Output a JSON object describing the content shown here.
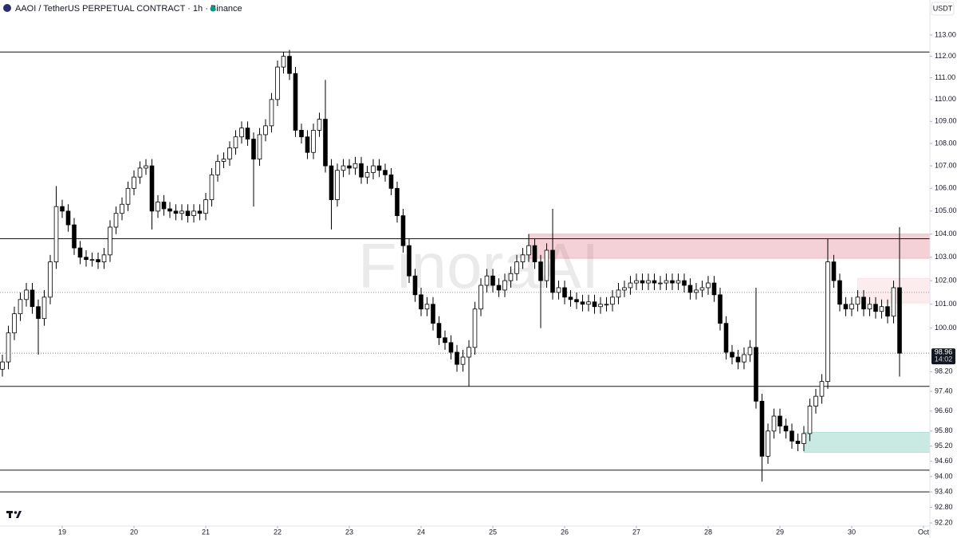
{
  "chart_data": {
    "type": "candlestick",
    "title": "AAOI / TetherUS PERPETUAL CONTRACT · 1h · Binance",
    "currency": "USDT",
    "watermark": "FinoraAI",
    "log_scale": true,
    "grid": false,
    "up_color": "#ffffff",
    "down_color": "#000000",
    "xlim": [
      -0.4,
      155.07
    ],
    "xticks": [
      {
        "value": 10,
        "label": "19"
      },
      {
        "value": 22,
        "label": "20"
      },
      {
        "value": 34,
        "label": "21"
      },
      {
        "value": 46,
        "label": "22"
      },
      {
        "value": 58,
        "label": "23"
      },
      {
        "value": 70,
        "label": "24"
      },
      {
        "value": 82,
        "label": "25"
      },
      {
        "value": 94,
        "label": "26"
      },
      {
        "value": 106,
        "label": "27"
      },
      {
        "value": 118,
        "label": "28"
      },
      {
        "value": 130,
        "label": "29"
      },
      {
        "value": 142,
        "label": "30"
      },
      {
        "value": 154,
        "label": "Oct"
      }
    ],
    "ylim": [
      92.08,
      114.66
    ],
    "yticks": [
      {
        "value": 113,
        "label": "113.00"
      },
      {
        "value": 112,
        "label": "112.00"
      },
      {
        "value": 111,
        "label": "111.00"
      },
      {
        "value": 110,
        "label": "110.00"
      },
      {
        "value": 109,
        "label": "109.00"
      },
      {
        "value": 108,
        "label": "108.00"
      },
      {
        "value": 107,
        "label": "107.00"
      },
      {
        "value": 106,
        "label": "106.00"
      },
      {
        "value": 105,
        "label": "105.00"
      },
      {
        "value": 104,
        "label": "104.00"
      },
      {
        "value": 103,
        "label": "103.00"
      },
      {
        "value": 102,
        "label": "102.00"
      },
      {
        "value": 101,
        "label": "101.00"
      },
      {
        "value": 100,
        "label": "100.00"
      },
      {
        "value": 98.2,
        "label": "98.20"
      },
      {
        "value": 97.4,
        "label": "97.40"
      },
      {
        "value": 96.6,
        "label": "96.60"
      },
      {
        "value": 95.8,
        "label": "95.80"
      },
      {
        "value": 95.2,
        "label": "95.20"
      },
      {
        "value": 94.6,
        "label": "94.60"
      },
      {
        "value": 94,
        "label": "94.00"
      },
      {
        "value": 93.4,
        "label": "93.40"
      },
      {
        "value": 92.8,
        "label": "92.80"
      },
      {
        "value": 92.2,
        "label": "92.20"
      }
    ],
    "last_price": {
      "value": 98.96,
      "label": "98.96"
    },
    "countdown": "14:02",
    "levels": [
      112.2,
      103.8,
      97.6,
      94.25,
      93.4
    ],
    "dotted_levels": [
      101.5
    ],
    "zones": [
      {
        "from": 88,
        "low": 102.95,
        "high": 104.0,
        "color": "rgba(214,90,110,0.28)"
      },
      {
        "from": 143,
        "low": 101.05,
        "high": 102.1,
        "color": "rgba(240,150,160,0.18)"
      },
      {
        "from": 134,
        "low": 94.95,
        "high": 95.75,
        "color": "rgba(60,180,150,0.28)"
      }
    ],
    "open": [
      98.3,
      98.6,
      99.8,
      100.6,
      101.2,
      101.6,
      100.9,
      100.4,
      101.3,
      102.8,
      105.2,
      105.0,
      104.4,
      103.4,
      103.0,
      102.9,
      102.9,
      102.8,
      103.1,
      104.3,
      104.9,
      105.3,
      106.0,
      106.5,
      106.9,
      107.0,
      105.0,
      105.4,
      105.1,
      105.0,
      104.9,
      105.0,
      104.8,
      105.0,
      104.9,
      105.5,
      106.6,
      107.2,
      107.3,
      107.8,
      108.3,
      108.7,
      108.2,
      107.3,
      108.4,
      108.8,
      110.0,
      111.5,
      112.0,
      111.2,
      108.6,
      108.3,
      107.6,
      108.6,
      109.1,
      107.0,
      105.5,
      106.8,
      107.0,
      106.9,
      107.1,
      106.5,
      106.7,
      107.0,
      106.8,
      106.6,
      106.0,
      104.8,
      103.5,
      102.2,
      101.4,
      100.8,
      101.0,
      100.2,
      99.6,
      99.4,
      99.0,
      98.5,
      98.8,
      99.2,
      100.8,
      101.8,
      102.2,
      101.8,
      101.6,
      102.0,
      102.3,
      102.8,
      103.1,
      103.5,
      102.8,
      102.0,
      103.3,
      101.5,
      101.7,
      101.3,
      101.2,
      101.1,
      101.0,
      101.1,
      100.9,
      101.0,
      101.0,
      101.3,
      101.6,
      101.7,
      101.9,
      102.0,
      101.9,
      102.0,
      101.9,
      101.9,
      102.0,
      101.9,
      102.0,
      101.8,
      101.5,
      101.6,
      101.7,
      101.9,
      101.4,
      100.2,
      99.0,
      98.8,
      98.6,
      98.9,
      99.2,
      97.0,
      94.8,
      95.8,
      96.4,
      96.0,
      95.8,
      95.4,
      95.3,
      95.7,
      96.8,
      97.2,
      97.8,
      102.8,
      102.0,
      101.0,
      100.8,
      101.0,
      101.3,
      100.8,
      101.0,
      100.7,
      100.9,
      100.5,
      101.7
    ],
    "high": [
      98.9,
      100.1,
      100.9,
      101.5,
      101.9,
      101.9,
      101.2,
      101.6,
      103.1,
      106.1,
      105.5,
      105.3,
      104.7,
      103.7,
      103.3,
      103.2,
      103.2,
      103.4,
      104.6,
      105.2,
      105.6,
      106.3,
      106.8,
      107.2,
      107.3,
      107.3,
      105.7,
      105.7,
      105.4,
      105.3,
      105.3,
      105.3,
      105.3,
      105.3,
      105.8,
      106.9,
      107.5,
      107.6,
      108.1,
      108.6,
      109.0,
      109.0,
      108.5,
      108.7,
      109.1,
      110.3,
      111.8,
      112.2,
      112.3,
      111.5,
      108.9,
      108.6,
      108.9,
      109.4,
      110.9,
      107.3,
      107.1,
      107.3,
      107.3,
      107.4,
      107.4,
      107.0,
      107.3,
      107.3,
      107.1,
      106.9,
      106.3,
      105.1,
      103.8,
      102.5,
      101.7,
      101.3,
      101.3,
      100.5,
      99.9,
      99.7,
      99.3,
      99.1,
      99.5,
      101.1,
      102.1,
      102.5,
      102.5,
      102.1,
      102.3,
      102.6,
      103.1,
      103.4,
      104.0,
      103.8,
      103.1,
      103.6,
      105.1,
      102.0,
      102.0,
      101.6,
      101.5,
      101.4,
      101.4,
      101.4,
      101.3,
      101.3,
      101.6,
      101.9,
      102.0,
      102.2,
      102.3,
      102.3,
      102.3,
      102.3,
      102.2,
      102.3,
      102.3,
      102.3,
      102.3,
      102.1,
      101.9,
      102.0,
      102.2,
      102.2,
      101.7,
      100.5,
      99.3,
      99.1,
      99.2,
      99.5,
      101.7,
      97.3,
      96.1,
      96.7,
      96.7,
      96.3,
      96.1,
      95.7,
      96.0,
      97.1,
      97.5,
      98.1,
      103.8,
      103.1,
      102.3,
      101.3,
      101.3,
      101.6,
      101.6,
      101.3,
      101.3,
      101.2,
      101.2,
      102.0,
      104.3
    ],
    "low": [
      98.0,
      98.3,
      99.5,
      100.3,
      100.9,
      100.6,
      98.9,
      100.1,
      101.0,
      102.5,
      104.7,
      104.1,
      103.1,
      102.7,
      102.6,
      102.6,
      102.5,
      102.5,
      102.8,
      104.0,
      104.6,
      105.0,
      105.7,
      106.2,
      106.6,
      104.2,
      104.7,
      104.8,
      104.7,
      104.6,
      104.6,
      104.5,
      104.5,
      104.6,
      104.6,
      105.2,
      106.3,
      106.9,
      107.0,
      107.5,
      108.0,
      107.9,
      105.2,
      107.0,
      108.1,
      108.5,
      109.7,
      111.2,
      110.9,
      108.3,
      108.0,
      107.3,
      107.3,
      108.3,
      106.7,
      104.2,
      105.2,
      106.5,
      106.6,
      106.6,
      106.2,
      106.2,
      106.4,
      106.5,
      106.3,
      105.7,
      104.5,
      103.2,
      101.9,
      101.1,
      100.5,
      100.5,
      99.9,
      99.3,
      99.1,
      98.7,
      98.2,
      98.2,
      97.6,
      98.9,
      100.5,
      101.5,
      101.5,
      101.3,
      101.3,
      101.7,
      102.0,
      102.5,
      102.8,
      102.5,
      100.0,
      101.7,
      101.2,
      101.2,
      101.0,
      100.9,
      100.8,
      100.7,
      100.7,
      100.6,
      100.6,
      100.7,
      100.7,
      101.0,
      101.3,
      101.4,
      101.6,
      101.6,
      101.6,
      101.6,
      101.6,
      101.6,
      101.6,
      101.6,
      101.5,
      101.2,
      101.2,
      101.3,
      101.4,
      101.1,
      99.9,
      98.7,
      98.5,
      98.3,
      98.3,
      98.6,
      96.7,
      93.8,
      94.5,
      95.5,
      95.7,
      95.5,
      95.1,
      95.0,
      95.0,
      95.4,
      96.5,
      96.9,
      97.5,
      101.7,
      100.7,
      100.5,
      100.5,
      100.7,
      100.5,
      100.5,
      100.4,
      100.4,
      100.2,
      100.2,
      98.0
    ],
    "close": [
      98.6,
      99.8,
      100.6,
      101.2,
      101.6,
      100.9,
      100.4,
      101.3,
      102.8,
      105.2,
      105.0,
      104.4,
      103.4,
      103.0,
      102.9,
      102.9,
      102.8,
      103.1,
      104.3,
      104.9,
      105.3,
      106.0,
      106.5,
      106.9,
      107.0,
      105.0,
      105.4,
      105.1,
      105.0,
      104.9,
      105.0,
      104.8,
      105.0,
      104.9,
      105.5,
      106.6,
      107.2,
      107.3,
      107.8,
      108.3,
      108.7,
      108.2,
      107.3,
      108.4,
      108.8,
      110.0,
      111.5,
      112.0,
      111.2,
      108.6,
      108.3,
      107.6,
      108.6,
      109.1,
      107.0,
      105.5,
      106.8,
      107.0,
      106.9,
      107.1,
      106.5,
      106.7,
      107.0,
      106.8,
      106.6,
      106.0,
      104.8,
      103.5,
      102.2,
      101.4,
      100.8,
      101.0,
      100.2,
      99.6,
      99.4,
      99.0,
      98.5,
      98.8,
      99.2,
      100.8,
      101.8,
      102.2,
      101.8,
      101.6,
      102.0,
      102.3,
      102.8,
      103.1,
      103.5,
      102.8,
      102.0,
      103.3,
      101.5,
      101.7,
      101.3,
      101.2,
      101.1,
      101.0,
      101.1,
      100.9,
      101.0,
      101.0,
      101.3,
      101.6,
      101.7,
      101.9,
      102.0,
      101.9,
      102.0,
      101.9,
      101.9,
      102.0,
      101.9,
      102.0,
      101.8,
      101.5,
      101.6,
      101.7,
      101.9,
      101.4,
      100.2,
      99.0,
      98.8,
      98.6,
      98.9,
      99.2,
      97.0,
      94.8,
      95.8,
      96.4,
      96.0,
      95.8,
      95.4,
      95.3,
      95.7,
      96.8,
      97.2,
      97.8,
      102.8,
      102.0,
      101.0,
      100.8,
      101.0,
      101.3,
      100.8,
      101.0,
      100.7,
      100.9,
      100.5,
      101.7,
      98.96
    ]
  }
}
